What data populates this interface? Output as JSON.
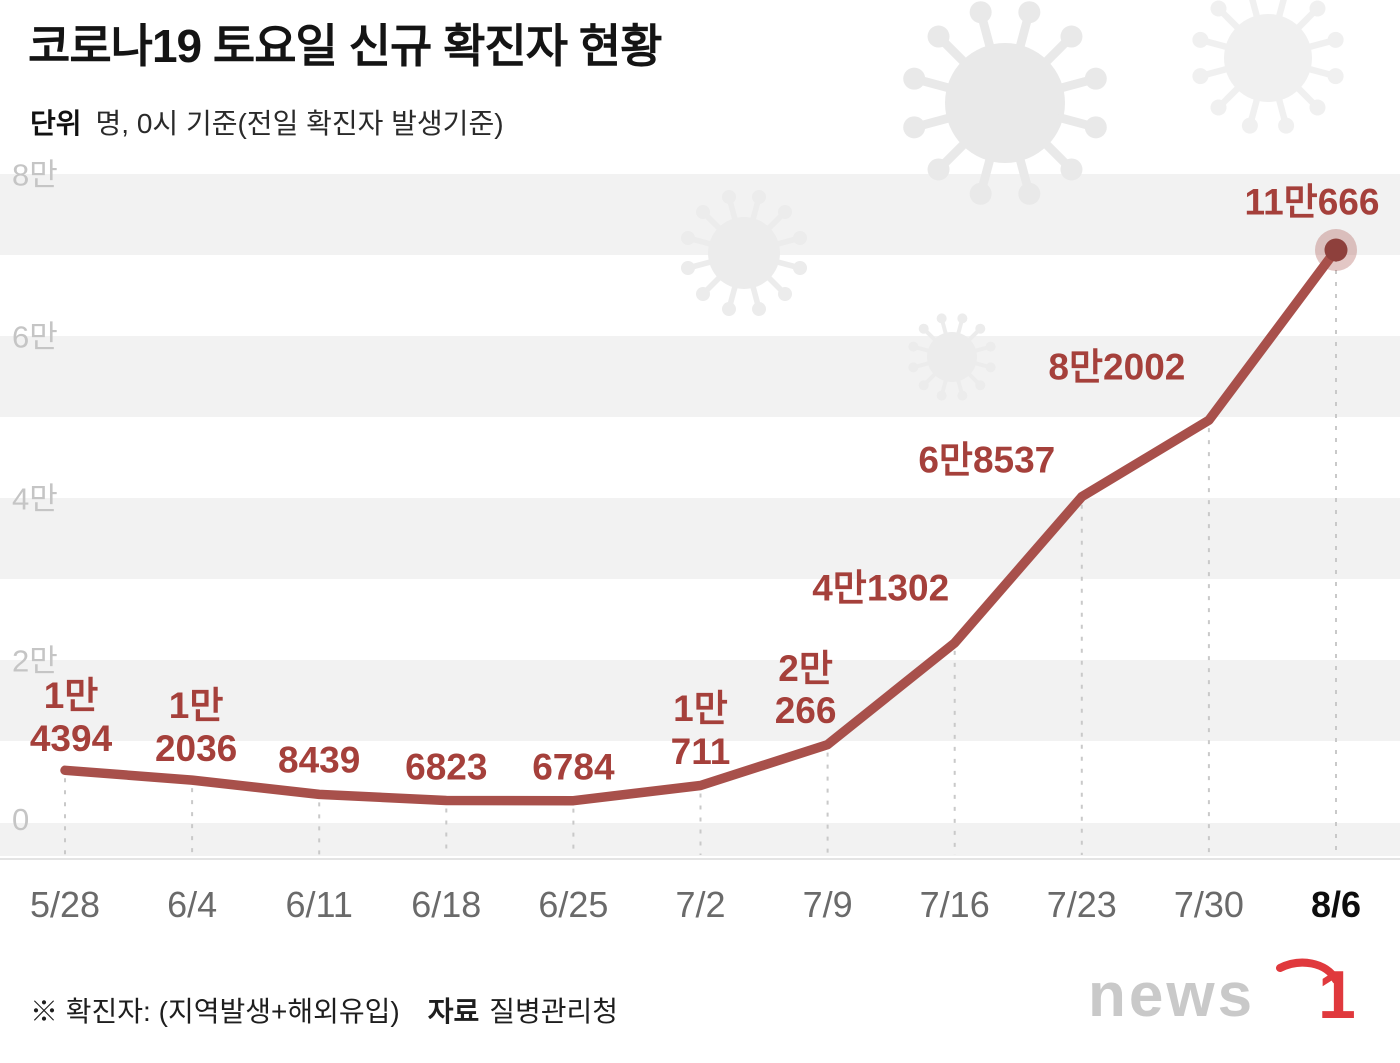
{
  "header": {
    "title": "코로나19 토요일 신규 확진자 현황",
    "unit_label": "단위",
    "unit_desc": "명, 0시 기준(전일 확진자 발생기준)"
  },
  "chart_data": {
    "type": "line",
    "title": "코로나19 토요일 신규 확진자 현황",
    "unit": "명",
    "categories": [
      "5/28",
      "6/4",
      "6/11",
      "6/18",
      "6/25",
      "7/2",
      "7/9",
      "7/16",
      "7/23",
      "7/30",
      "8/6"
    ],
    "values": [
      14394,
      12036,
      8439,
      6823,
      6784,
      10711,
      20266,
      41302,
      68537,
      82002,
      110666
    ],
    "point_labels": [
      [
        "1만",
        "4394"
      ],
      [
        "1만",
        "2036"
      ],
      [
        "8439"
      ],
      [
        "6823"
      ],
      [
        "6784"
      ],
      [
        "1만",
        "711"
      ],
      [
        "2만",
        "266"
      ],
      [
        "4만1302"
      ],
      [
        "6만8537"
      ],
      [
        "8만2002"
      ],
      [
        "11만666"
      ]
    ],
    "y_ticks": [
      "8만",
      "6만",
      "4만",
      "2만",
      "0"
    ],
    "y_tick_values": [
      80000,
      60000,
      40000,
      20000,
      0
    ],
    "grid": "striped-horizontal",
    "legend": "none",
    "line_color": "#a8504b",
    "label_color": "#a5403b",
    "highlight_color": "#8e403c",
    "stripe_color": "#f2f2f2",
    "note": "final point 8/6 highlighted with marker dot"
  },
  "footer": {
    "note": "※ 확진자: (지역발생+해외유입)",
    "source_label": "자료",
    "source": "질병관리청",
    "logo_text": "news",
    "logo_accent": "1"
  }
}
